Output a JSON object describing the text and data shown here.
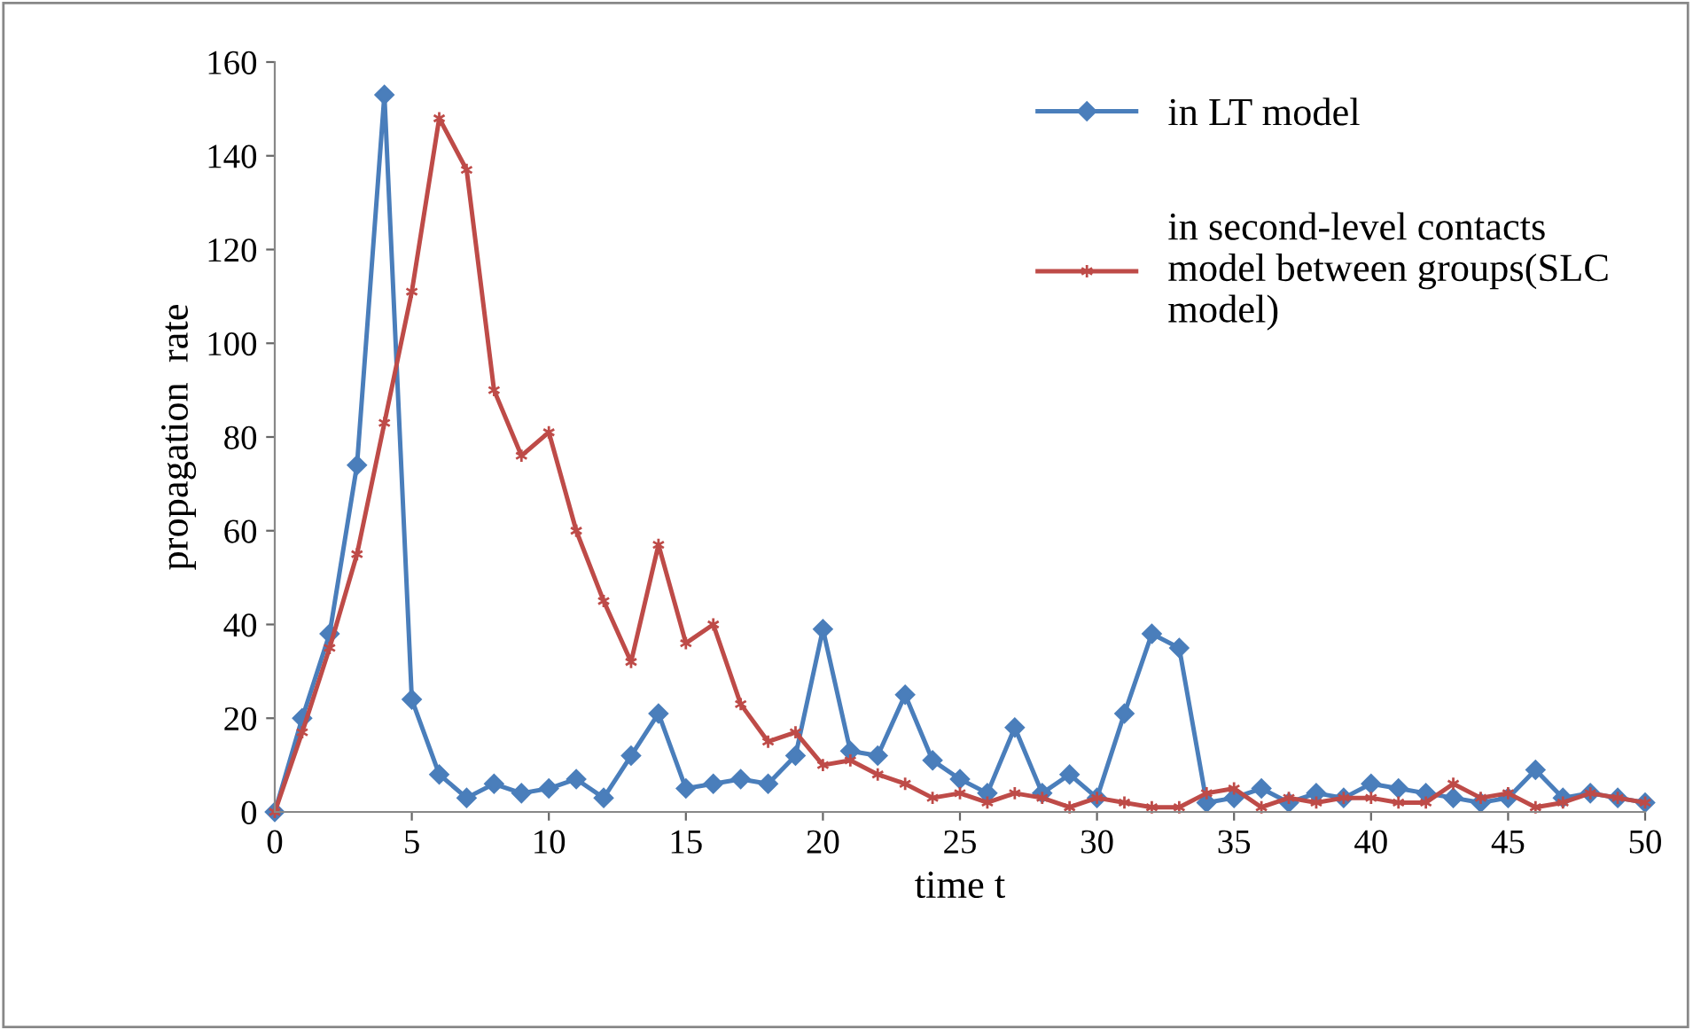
{
  "chart_data": {
    "type": "line",
    "xlabel": "time t",
    "ylabel": "propagation  rate",
    "x": [
      0,
      1,
      2,
      3,
      4,
      5,
      6,
      7,
      8,
      9,
      10,
      11,
      12,
      13,
      14,
      15,
      16,
      17,
      18,
      19,
      20,
      21,
      22,
      23,
      24,
      25,
      26,
      27,
      28,
      29,
      30,
      31,
      32,
      33,
      34,
      35,
      36,
      37,
      38,
      39,
      40,
      41,
      42,
      43,
      44,
      45,
      46,
      47,
      48,
      49,
      50
    ],
    "series": [
      {
        "name": "in LT model",
        "color": "#4a7ebb",
        "marker": "diamond",
        "values": [
          0,
          20,
          38,
          74,
          153,
          24,
          8,
          3,
          6,
          4,
          5,
          7,
          3,
          12,
          21,
          5,
          6,
          7,
          6,
          12,
          39,
          13,
          12,
          25,
          11,
          7,
          4,
          18,
          4,
          8,
          3,
          21,
          38,
          35,
          2,
          3,
          5,
          2,
          4,
          3,
          6,
          5,
          4,
          3,
          2,
          3,
          9,
          3,
          4,
          3,
          2
        ]
      },
      {
        "name": "in second-level contacts\nmodel between groups(SLC\nmodel)",
        "color": "#be4b48",
        "marker": "cross",
        "values": [
          0,
          17,
          35,
          55,
          83,
          111,
          148,
          137,
          90,
          76,
          81,
          60,
          45,
          32,
          57,
          36,
          40,
          23,
          15,
          17,
          10,
          11,
          8,
          6,
          3,
          4,
          2,
          4,
          3,
          1,
          3,
          2,
          1,
          1,
          4,
          5,
          1,
          3,
          2,
          3,
          3,
          2,
          2,
          6,
          3,
          4,
          1,
          2,
          4,
          3,
          2
        ]
      }
    ],
    "xlim": [
      0,
      50
    ],
    "xticks": [
      0,
      5,
      10,
      15,
      20,
      25,
      30,
      35,
      40,
      45,
      50
    ],
    "ylim": [
      0,
      160
    ],
    "yticks": [
      0,
      20,
      40,
      60,
      80,
      100,
      120,
      140,
      160
    ],
    "grid": false,
    "legend": "top right",
    "line_style": "solid"
  }
}
